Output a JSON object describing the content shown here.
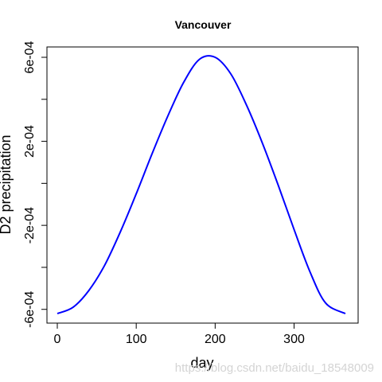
{
  "chart_data": {
    "type": "line",
    "title": "Vancouver",
    "xlabel": "day",
    "ylabel": "D2 precipitation",
    "xlim": [
      0,
      365
    ],
    "ylim": [
      -0.00066,
      0.00068
    ],
    "x_ticks": [
      0,
      100,
      200,
      300
    ],
    "x_tick_labels": [
      "0",
      "100",
      "200",
      "300"
    ],
    "y_ticks": [
      -0.0006,
      -0.0004,
      -0.0002,
      0,
      0.0002,
      0.0004,
      0.0006
    ],
    "y_tick_labels": [
      "-6e-04",
      "",
      "-2e-04",
      "",
      "2e-04",
      "",
      "6e-04"
    ],
    "grid": false,
    "series": [
      {
        "color": "#0000ff",
        "x": [
          0,
          20,
          40,
          60,
          80,
          100,
          120,
          140,
          160,
          180,
          200,
          220,
          240,
          260,
          280,
          300,
          320,
          340,
          365
        ],
        "y": [
          -0.00062,
          -0.00059,
          -0.00051,
          -0.00039,
          -0.00023,
          -5e-05,
          0.00014,
          0.00032,
          0.00048,
          0.00059,
          0.0006,
          0.00052,
          0.00037,
          0.00019,
          -1e-05,
          -0.00022,
          -0.00042,
          -0.00057,
          -0.00062
        ]
      }
    ]
  },
  "watermark": "https://blog.csdn.net/baidu_18548009"
}
